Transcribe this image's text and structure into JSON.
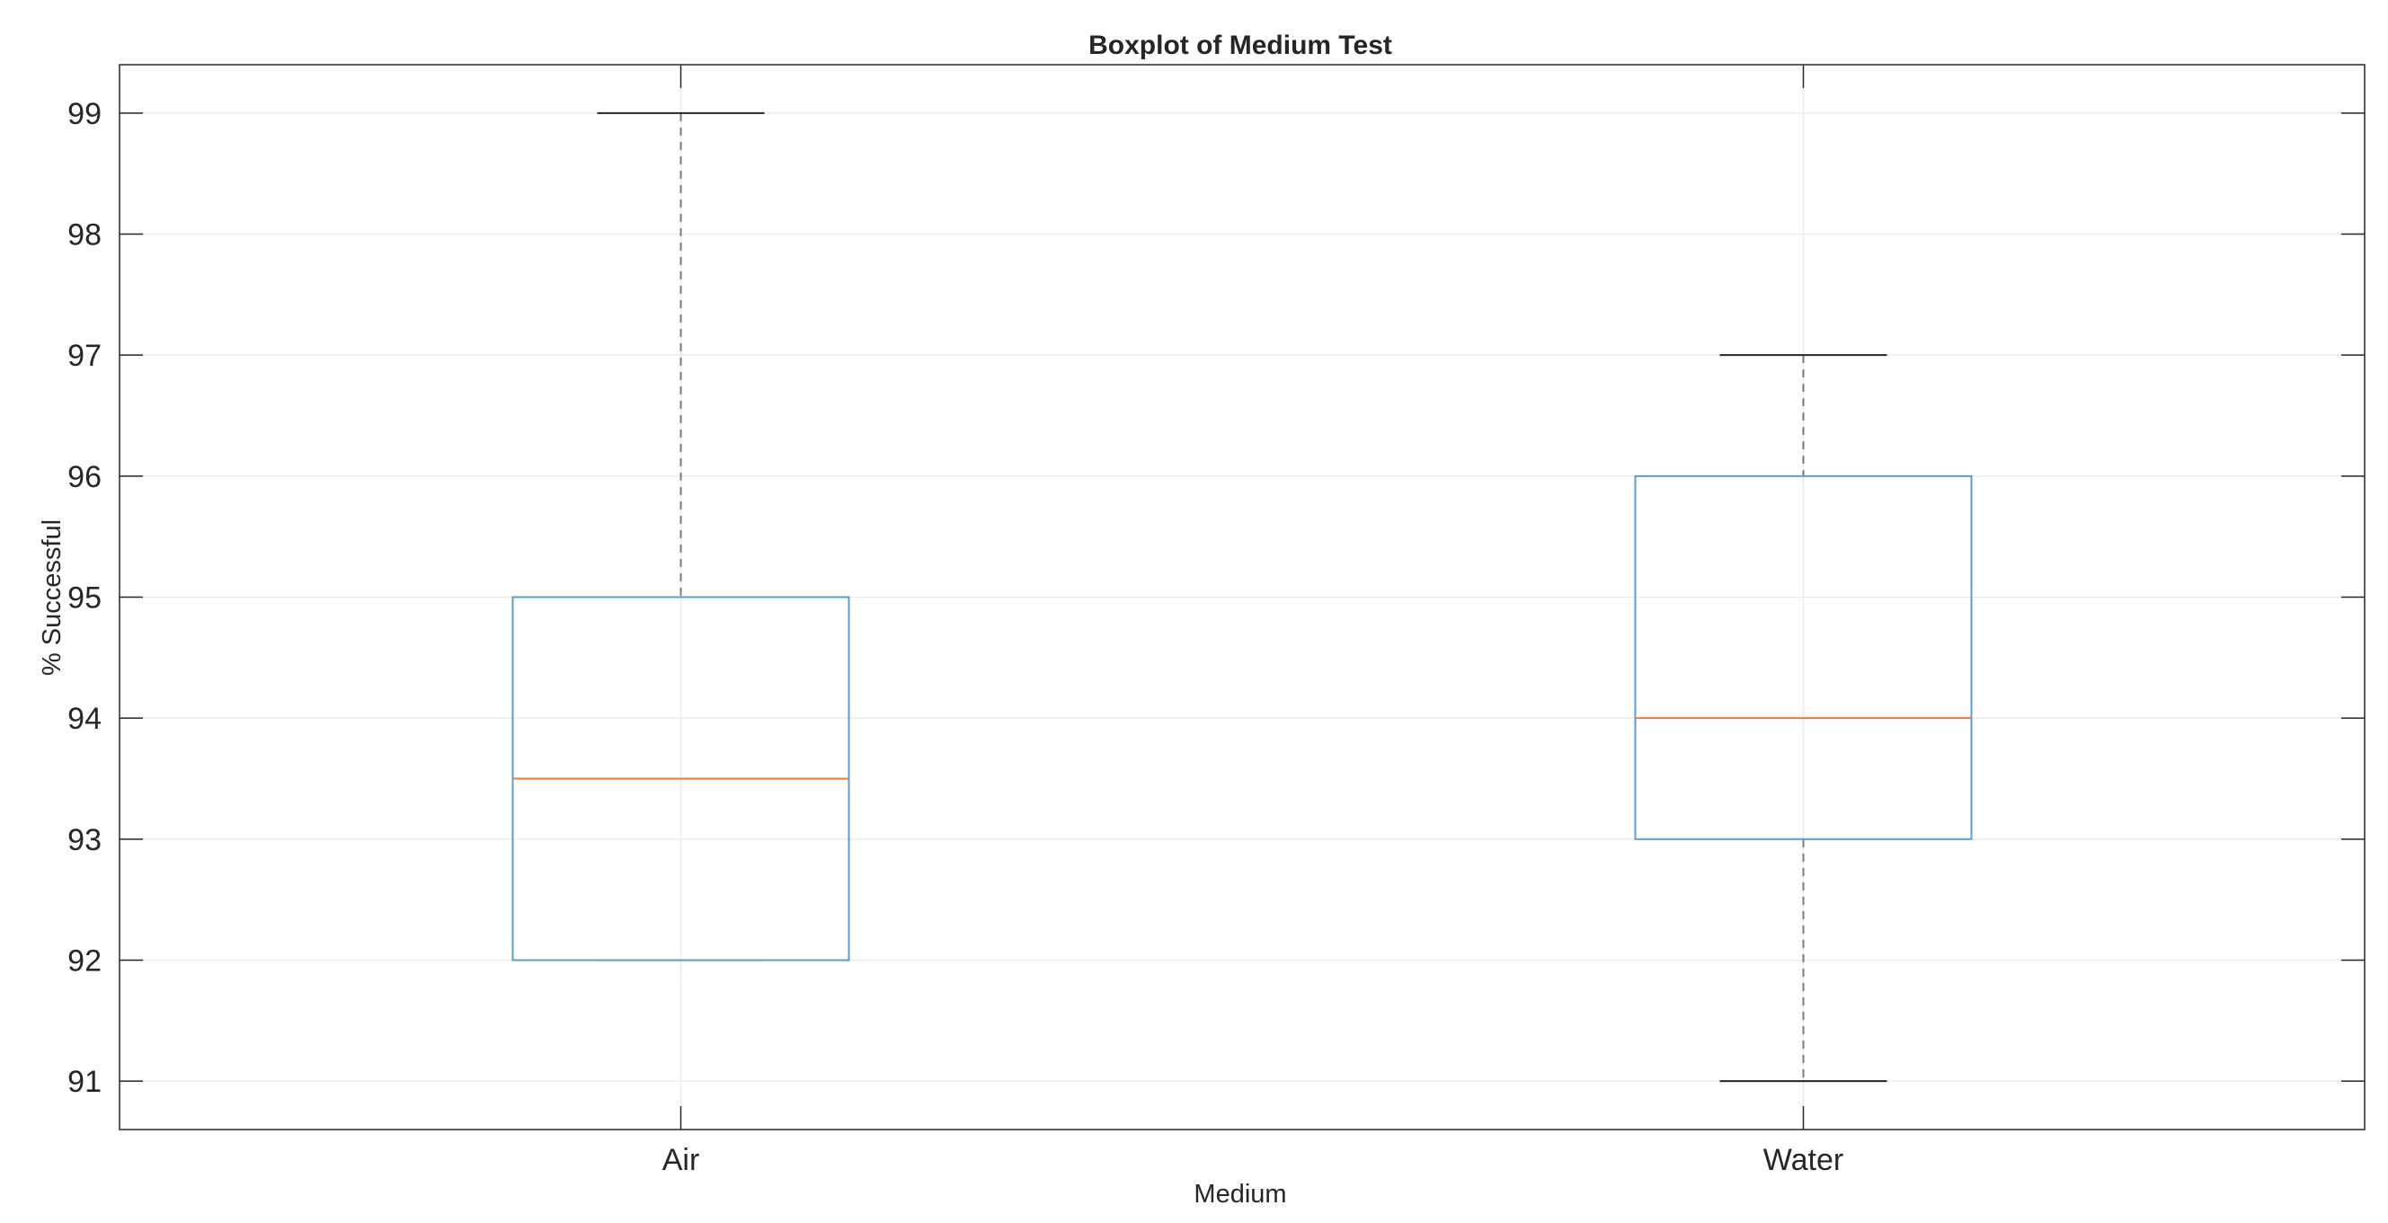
{
  "chart_data": {
    "type": "boxplot",
    "title": "Boxplot of Medium Test",
    "xlabel": "Medium",
    "ylabel": "% Successful",
    "categories": [
      "Air",
      "Water"
    ],
    "ylim": [
      90.6,
      99.4
    ],
    "yticks": [
      91,
      92,
      93,
      94,
      95,
      96,
      97,
      98,
      99
    ],
    "grid": true,
    "boxes": [
      {
        "category": "Air",
        "whisker_low": 92,
        "q1": 92,
        "median": 93.5,
        "q3": 95,
        "whisker_high": 99
      },
      {
        "category": "Water",
        "whisker_low": 91,
        "q1": 93,
        "median": 94,
        "q3": 96,
        "whisker_high": 97
      }
    ],
    "colors": {
      "box": "#5b9bd5",
      "median": "#ed7d31",
      "whisker": "#7a7a7a",
      "grid": "#ebebeb",
      "axes": "#262626"
    }
  }
}
